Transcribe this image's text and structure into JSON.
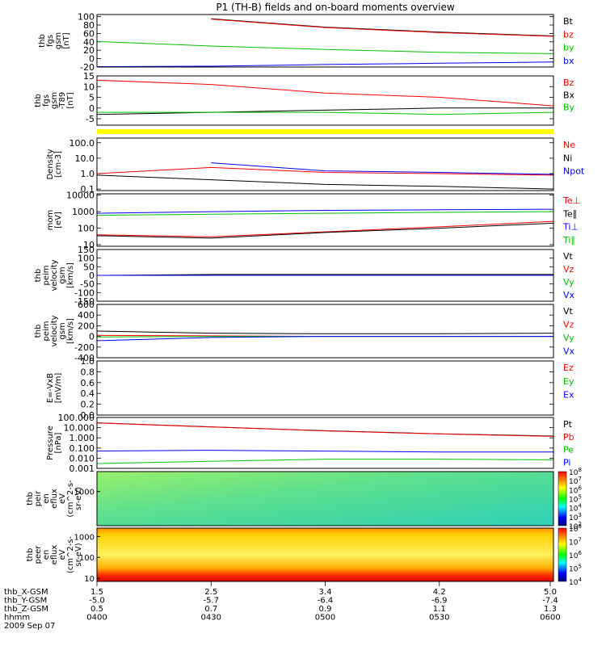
{
  "chart_data": [
    {
      "type": "line",
      "title": "P1 (TH-B) fields and on-board moments overview",
      "ylabel": [
        "thb",
        "fgs",
        "gsm",
        "[nT]"
      ],
      "ticks": [
        "-20",
        "0",
        "20",
        "40",
        "60",
        "80",
        "100"
      ],
      "ylim": [
        -20,
        105
      ],
      "x": [
        0,
        0.25,
        0.5,
        0.75,
        1
      ],
      "series": [
        {
          "name": "Bt",
          "color": "#000000",
          "values": [
            null,
            95,
            75,
            63,
            54
          ]
        },
        {
          "name": "bz",
          "color": "#ff0000",
          "values": [
            null,
            94,
            74,
            62,
            53
          ]
        },
        {
          "name": "by",
          "color": "#00c000",
          "values": [
            41,
            30,
            22,
            15,
            12
          ]
        },
        {
          "name": "bx",
          "color": "#0000ff",
          "values": [
            -19,
            -18,
            -14,
            -11,
            -8
          ]
        }
      ]
    },
    {
      "type": "line",
      "ylabel": [
        "thb",
        "fgs",
        "gsm",
        "-T89",
        "[nT]"
      ],
      "ticks": [
        "-5",
        "0",
        "5",
        "10",
        "15"
      ],
      "ylim": [
        -8,
        15
      ],
      "x": [
        0,
        0.25,
        0.5,
        0.75,
        1
      ],
      "series": [
        {
          "name": "Bz",
          "color": "#ff0000",
          "values": [
            13,
            11,
            7,
            5,
            1
          ]
        },
        {
          "name": "Bx",
          "color": "#000000",
          "values": [
            -3,
            -2,
            -1,
            0,
            0
          ]
        },
        {
          "name": "By",
          "color": "#00c000",
          "values": [
            -2,
            -2,
            -2,
            -3,
            -2
          ]
        }
      ]
    },
    {
      "type": "line",
      "ylabel": [
        "Density",
        "[cm-3]"
      ],
      "ticks": [
        "0.1",
        "1.0",
        "10.0",
        "100.0"
      ],
      "ylim_log": [
        0.08,
        200
      ],
      "x": [
        0,
        0.25,
        0.5,
        0.75,
        1
      ],
      "series": [
        {
          "name": "Ne",
          "color": "#ff0000",
          "values": [
            1.0,
            2.5,
            1.2,
            1.0,
            0.8
          ]
        },
        {
          "name": "Ni",
          "color": "#000000",
          "values": [
            0.8,
            0.4,
            0.2,
            0.15,
            0.1
          ]
        },
        {
          "name": "Npot",
          "color": "#0000ff",
          "values": [
            null,
            5.0,
            1.5,
            1.2,
            0.9
          ]
        }
      ]
    },
    {
      "type": "line",
      "ylabel": [
        "mom",
        "[eV]"
      ],
      "ticks": [
        "10",
        "100",
        "1000",
        "10000"
      ],
      "ylim_log": [
        8,
        12000
      ],
      "x": [
        0,
        0.25,
        0.5,
        0.75,
        1
      ],
      "series": [
        {
          "name": "Te⊥",
          "color": "#ff0000",
          "values": [
            40,
            30,
            60,
            120,
            260
          ]
        },
        {
          "name": "Te∥",
          "color": "#000000",
          "values": [
            35,
            25,
            55,
            100,
            200
          ]
        },
        {
          "name": "Ti⊥",
          "color": "#0000ff",
          "values": [
            800,
            1000,
            1200,
            1300,
            1400
          ]
        },
        {
          "name": "Ti∥",
          "color": "#00c000",
          "values": [
            600,
            700,
            800,
            900,
            1000
          ]
        }
      ]
    },
    {
      "type": "line",
      "ylabel": [
        "thb",
        "peim",
        "velocity",
        "gsm",
        "[km/s]"
      ],
      "ticks": [
        "-150",
        "-100",
        "-50",
        "0",
        "50",
        "100",
        "150"
      ],
      "ylim": [
        -150,
        150
      ],
      "x": [
        0,
        0.25,
        0.5,
        0.75,
        1
      ],
      "series": [
        {
          "name": "Vt",
          "color": "#000000",
          "values": [
            0,
            5,
            5,
            5,
            5
          ]
        },
        {
          "name": "Vz",
          "color": "#ff0000",
          "values": [
            0,
            0,
            0,
            0,
            0
          ]
        },
        {
          "name": "Vy",
          "color": "#00c000",
          "values": [
            0,
            0,
            0,
            0,
            0
          ]
        },
        {
          "name": "Vx",
          "color": "#0000ff",
          "values": [
            0,
            0,
            0,
            0,
            0
          ]
        }
      ]
    },
    {
      "type": "line",
      "ylabel": [
        "thb",
        "peim",
        "velocity",
        "gsm",
        "[km/s]"
      ],
      "ticks": [
        "-400",
        "-200",
        "0",
        "200",
        "400",
        "600"
      ],
      "ylim": [
        -400,
        600
      ],
      "x": [
        0,
        0.25,
        0.5,
        0.75,
        1
      ],
      "series": [
        {
          "name": "Vt",
          "color": "#000000",
          "values": [
            100,
            60,
            50,
            50,
            60
          ]
        },
        {
          "name": "Vz",
          "color": "#ff0000",
          "values": [
            20,
            10,
            0,
            0,
            0
          ]
        },
        {
          "name": "Vy",
          "color": "#00c000",
          "values": [
            -10,
            0,
            0,
            0,
            0
          ]
        },
        {
          "name": "Vx",
          "color": "#0000ff",
          "values": [
            -80,
            -20,
            0,
            0,
            0
          ]
        }
      ]
    },
    {
      "type": "line",
      "ylabel": [
        "E=-VxB",
        "[mV/m]"
      ],
      "ticks": [
        "0.0",
        "0.2",
        "0.4",
        "0.6",
        "0.8",
        "1.0"
      ],
      "ylim": [
        0,
        1
      ],
      "series": [
        {
          "name": "Ez",
          "color": "#ff0000",
          "values": []
        },
        {
          "name": "Ey",
          "color": "#00c000",
          "values": []
        },
        {
          "name": "Ex",
          "color": "#0000ff",
          "values": []
        }
      ]
    },
    {
      "type": "line",
      "ylabel": [
        "Pressure",
        "[nPa]"
      ],
      "ticks": [
        "0.001",
        "0.010",
        "0.100",
        "1.000",
        "10.000",
        "100.000"
      ],
      "ylim_log": [
        0.001,
        100
      ],
      "x": [
        0,
        0.25,
        0.5,
        0.75,
        1
      ],
      "series": [
        {
          "name": "Pt",
          "color": "#000000",
          "values": [
            30,
            12,
            5,
            2.5,
            1.5
          ]
        },
        {
          "name": "Pb",
          "color": "#ff0000",
          "values": [
            29,
            11.5,
            4.8,
            2.4,
            1.4
          ]
        },
        {
          "name": "Pe",
          "color": "#00c000",
          "values": [
            0.003,
            0.005,
            0.008,
            0.008,
            0.007
          ]
        },
        {
          "name": "Pi",
          "color": "#0000ff",
          "values": [
            0.05,
            0.06,
            0.05,
            0.04,
            0.04
          ]
        }
      ]
    },
    {
      "type": "heatmap",
      "ylabel": [
        "thb",
        "peir",
        "en",
        "eflux",
        "eV",
        "(cm^2-s-",
        "sr-eV)"
      ],
      "ticks": [
        "1000"
      ],
      "colorbar": [
        "10^2",
        "10^3",
        "10^4",
        "10^5",
        "10^6",
        "10^7",
        "10^8"
      ]
    },
    {
      "type": "heatmap",
      "ylabel": [
        "thb",
        "peer",
        "en",
        "eflux",
        "eV",
        "(cm^2-s-",
        "sr-eV)"
      ],
      "ticks": [
        "10",
        "100",
        "1000"
      ],
      "colorbar": [
        "10^4",
        "10^5",
        "10^6",
        "10^7",
        "10^8"
      ]
    }
  ],
  "xaxis": {
    "labels": [
      "thb_X-GSM",
      "thb_Y-GSM",
      "thb_Z-GSM",
      "hhmm",
      "2009 Sep 07"
    ],
    "columns": [
      {
        "x": "1.5",
        "y": "-5.0",
        "z": "0.5",
        "t": "0400"
      },
      {
        "x": "2.5",
        "y": "-5.7",
        "z": "0.7",
        "t": "0430"
      },
      {
        "x": "3.4",
        "y": "-6.4",
        "z": "0.9",
        "t": "0500"
      },
      {
        "x": "4.2",
        "y": "-6.9",
        "z": "1.1",
        "t": "0530"
      },
      {
        "x": "5.0",
        "y": "-7.4",
        "z": "1.3",
        "t": "0600"
      }
    ]
  }
}
